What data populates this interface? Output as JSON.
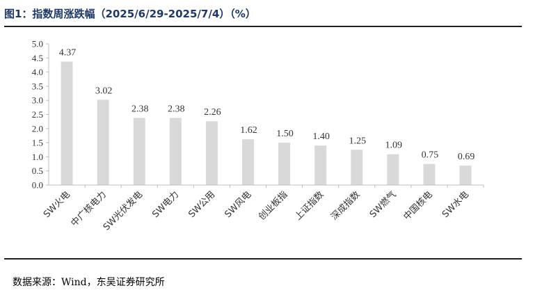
{
  "header": {
    "title": "图1：指数周涨跌幅（2025/6/29-2025/7/4）（%）"
  },
  "footer": {
    "source": "数据来源：Wind，东吴证券研究所"
  },
  "colors": {
    "bar": "#d9d9d9",
    "title": "#1f3864",
    "rule": "#1f1f1f"
  },
  "chart_data": {
    "type": "bar",
    "title": "",
    "xlabel": "",
    "ylabel": "",
    "ylim": [
      0,
      5
    ],
    "yticks": [
      "0.0",
      "0.5",
      "1.0",
      "1.5",
      "2.0",
      "2.5",
      "3.0",
      "3.5",
      "4.0",
      "4.5",
      "5.0"
    ],
    "categories": [
      "SW火电",
      "中广核电力",
      "SW光伏发电",
      "SW电力",
      "SW公用",
      "SW风电",
      "创业板指",
      "上证指数",
      "深成指数",
      "SW燃气",
      "中国核电",
      "SW水电"
    ],
    "values": [
      4.37,
      3.02,
      2.38,
      2.38,
      2.26,
      1.62,
      1.5,
      1.4,
      1.25,
      1.09,
      0.75,
      0.69
    ],
    "value_labels": [
      "4.37",
      "3.02",
      "2.38",
      "2.38",
      "2.26",
      "1.62",
      "1.50",
      "1.40",
      "1.25",
      "1.09",
      "0.75",
      "0.69"
    ],
    "grid": false,
    "legend": "none"
  }
}
